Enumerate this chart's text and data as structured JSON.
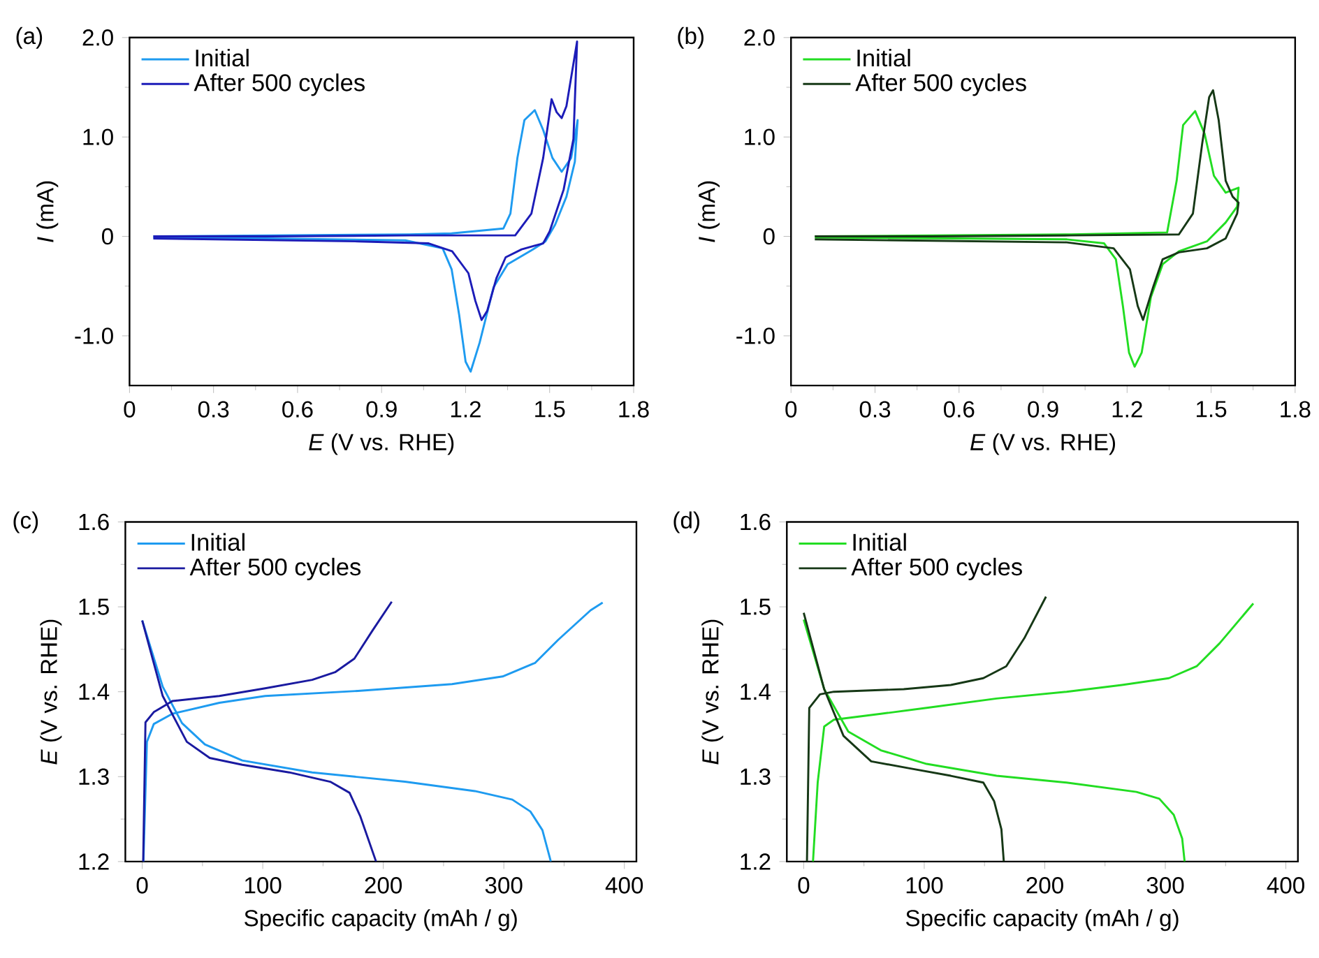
{
  "chart_data": [
    {
      "type": "line",
      "title": "(a)",
      "xlabel": "*E* (V vs. RHE)",
      "ylabel": "*I* (mA)",
      "xlim": [
        0,
        1.8
      ],
      "ylim": [
        -1.5,
        2.0
      ],
      "xticks": [
        0,
        0.3,
        0.6,
        0.9,
        1.2,
        1.5,
        1.8
      ],
      "yticks": [
        {
          "value": -1,
          "label": "-1.0"
        },
        0,
        {
          "value": 1,
          "label": "1.0"
        },
        {
          "value": 2,
          "label": "2.0"
        }
      ],
      "legend": "top left",
      "series": [
        {
          "name": "Initial",
          "color": "#1e9bf0",
          "x": [
            0.085,
            0.5,
            1.0,
            1.15,
            1.335,
            1.36,
            1.385,
            1.41,
            1.447,
            1.477,
            1.51,
            1.543,
            1.577,
            1.6,
            1.59,
            1.56,
            1.52,
            1.485,
            1.435,
            1.35,
            1.3,
            1.25,
            1.218,
            1.2,
            1.177,
            1.15,
            1.118,
            0.985,
            0.485,
            0.085
          ],
          "values": [
            0,
            0.01,
            0.02,
            0.03,
            0.08,
            0.23,
            0.79,
            1.17,
            1.27,
            1.07,
            0.79,
            0.65,
            0.79,
            1.17,
            0.75,
            0.4,
            0.12,
            -0.05,
            -0.14,
            -0.28,
            -0.51,
            -1.07,
            -1.36,
            -1.26,
            -0.79,
            -0.33,
            -0.12,
            -0.04,
            -0.02,
            -0.01
          ]
        },
        {
          "name": "After 500 cycles",
          "color": "#1c1cb8",
          "x": [
            0.085,
            0.5,
            1.0,
            1.377,
            1.435,
            1.477,
            1.507,
            1.525,
            1.543,
            1.56,
            1.598,
            1.585,
            1.55,
            1.5,
            1.477,
            1.4,
            1.343,
            1.31,
            1.277,
            1.257,
            1.235,
            1.21,
            1.152,
            1.068,
            0.818,
            0.085
          ],
          "values": [
            0,
            0,
            0.01,
            0.01,
            0.23,
            0.79,
            1.38,
            1.25,
            1.19,
            1.31,
            1.96,
            0.98,
            0.47,
            0.05,
            -0.07,
            -0.13,
            -0.21,
            -0.42,
            -0.75,
            -0.84,
            -0.65,
            -0.37,
            -0.15,
            -0.07,
            -0.05,
            -0.02
          ]
        }
      ]
    },
    {
      "type": "line",
      "title": "(b)",
      "xlabel": "*E* (V vs. RHE)",
      "ylabel": "*I* (mA)",
      "xlim": [
        0,
        1.8
      ],
      "ylim": [
        -1.5,
        2.0
      ],
      "xticks": [
        0,
        0.3,
        0.6,
        0.9,
        1.2,
        1.5,
        1.8
      ],
      "yticks": [
        {
          "value": -1,
          "label": "-1.0"
        },
        0,
        {
          "value": 1,
          "label": "1.0"
        },
        {
          "value": 2,
          "label": "2.0"
        }
      ],
      "legend": "top left",
      "series": [
        {
          "name": "Initial",
          "color": "#22dd22",
          "x": [
            0.085,
            0.5,
            1.0,
            1.343,
            1.377,
            1.4,
            1.443,
            1.477,
            1.51,
            1.552,
            1.598,
            1.593,
            1.552,
            1.485,
            1.385,
            1.327,
            1.285,
            1.252,
            1.227,
            1.207,
            1.185,
            1.16,
            1.118,
            0.985,
            0.085
          ],
          "values": [
            0,
            0.01,
            0.02,
            0.04,
            0.56,
            1.12,
            1.26,
            1.03,
            0.61,
            0.44,
            0.49,
            0.3,
            0.14,
            -0.05,
            -0.15,
            -0.28,
            -0.61,
            -1.17,
            -1.31,
            -1.17,
            -0.7,
            -0.23,
            -0.07,
            -0.03,
            -0.01
          ]
        },
        {
          "name": "After 500 cycles",
          "color": "#163816",
          "x": [
            0.085,
            0.5,
            1.0,
            1.385,
            1.435,
            1.468,
            1.493,
            1.507,
            1.527,
            1.552,
            1.577,
            1.598,
            1.593,
            1.552,
            1.485,
            1.385,
            1.327,
            1.293,
            1.257,
            1.238,
            1.21,
            1.152,
            0.985,
            0.085
          ],
          "values": [
            0,
            0,
            0.01,
            0.02,
            0.23,
            0.93,
            1.4,
            1.47,
            1.17,
            0.56,
            0.4,
            0.34,
            0.23,
            -0.02,
            -0.12,
            -0.16,
            -0.23,
            -0.51,
            -0.84,
            -0.7,
            -0.33,
            -0.12,
            -0.06,
            -0.03
          ]
        }
      ]
    },
    {
      "type": "line",
      "title": "(c)",
      "xlabel": "Specific capacity (mAh / g)",
      "ylabel": "*E* (V vs. RHE)",
      "xlim": [
        -14,
        410
      ],
      "ylim": [
        1.2,
        1.6
      ],
      "xticks": [
        0,
        100,
        200,
        300,
        400
      ],
      "yticks": [
        1.2,
        1.3,
        1.4,
        1.5,
        1.6
      ],
      "legend": "top left",
      "series": [
        {
          "name": "Initial",
          "color": "#1e9bf0",
          "x": [
            1,
            3.9,
            9.6,
            25,
            64,
            102,
            179,
            257,
            299,
            326,
            345,
            372,
            382,
            null,
            0,
            17,
            33,
            52,
            83,
            141,
            218,
            276,
            307,
            322,
            332,
            339
          ],
          "values": [
            1.2,
            1.341,
            1.362,
            1.374,
            1.387,
            1.395,
            1.401,
            1.409,
            1.418,
            1.434,
            1.461,
            1.496,
            1.505,
            null,
            1.484,
            1.406,
            1.363,
            1.338,
            1.319,
            1.305,
            1.294,
            1.283,
            1.273,
            1.259,
            1.237,
            1.2
          ]
        },
        {
          "name": "After 500 cycles",
          "color": "#1a1aa0",
          "x": [
            0.8,
            2.7,
            9.6,
            25,
            64,
            102,
            141,
            160,
            176,
            191,
            207,
            null,
            0,
            17,
            37,
            56,
            83,
            122,
            156,
            172,
            181,
            194
          ],
          "values": [
            1.2,
            1.364,
            1.376,
            1.389,
            1.395,
            1.404,
            1.414,
            1.423,
            1.439,
            1.472,
            1.506,
            null,
            1.484,
            1.395,
            1.341,
            1.322,
            1.314,
            1.305,
            1.294,
            1.281,
            1.253,
            1.2
          ]
        }
      ]
    },
    {
      "type": "line",
      "title": "(d)",
      "xlabel": "Specific capacity (mAh / g)",
      "ylabel": "*E* (V vs. RHE)",
      "xlim": [
        -14,
        410
      ],
      "ylim": [
        1.2,
        1.6
      ],
      "xticks": [
        0,
        100,
        200,
        300,
        400
      ],
      "yticks": [
        1.2,
        1.3,
        1.4,
        1.5,
        1.6
      ],
      "legend": "top left",
      "series": [
        {
          "name": "Initial",
          "color": "#22dd22",
          "x": [
            7.7,
            11.6,
            17,
            25,
            64,
            102,
            160,
            218,
            264,
            303,
            326,
            345,
            373,
            null,
            0,
            17,
            37,
            64,
            102,
            160,
            218,
            276,
            295,
            307,
            314,
            316
          ],
          "values": [
            1.2,
            1.293,
            1.359,
            1.367,
            1.374,
            1.381,
            1.392,
            1.4,
            1.408,
            1.416,
            1.43,
            1.457,
            1.504,
            null,
            1.485,
            1.403,
            1.353,
            1.331,
            1.315,
            1.301,
            1.293,
            1.282,
            1.274,
            1.255,
            1.227,
            1.2
          ]
        },
        {
          "name": "After 500 cycles",
          "color": "#163816",
          "x": [
            2.7,
            4.6,
            13.5,
            25,
            83,
            122,
            149,
            168,
            183,
            201,
            null,
            0,
            17,
            33,
            56,
            87,
            122,
            149,
            158,
            164,
            166
          ],
          "values": [
            1.2,
            1.381,
            1.397,
            1.4,
            1.403,
            1.408,
            1.416,
            1.43,
            1.463,
            1.512,
            null,
            1.493,
            1.403,
            1.348,
            1.318,
            1.31,
            1.301,
            1.293,
            1.271,
            1.238,
            1.2
          ]
        }
      ]
    }
  ]
}
